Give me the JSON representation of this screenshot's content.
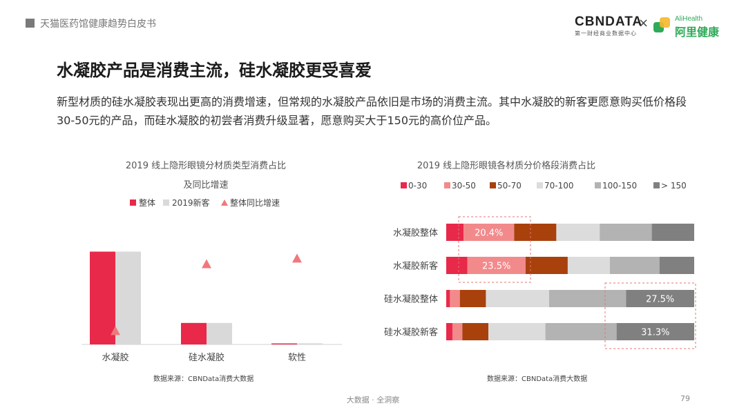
{
  "header": {
    "report_title": "天猫医药馆健康趋势白皮书",
    "logo_cbn": "CBNDATA",
    "logo_cbn_sub": "第一财经商业数据中心",
    "logo_x": "×",
    "logo_ali_en": "AliHealth",
    "logo_ali_cn": "阿里健康"
  },
  "page": {
    "title": "水凝胶产品是消费主流，硅水凝胶更受喜爱",
    "description": "新型材质的硅水凝胶表现出更高的消费增速，但常规的水凝胶产品依旧是市场的消费主流。其中水凝胶的新客更愿意购买低价格段30-50元的产品，而硅水凝胶的初尝者消费升级显著，愿意购买大于150元的高价位产品。",
    "footer_middle": "大数据 · 全洞察",
    "page_number": "79"
  },
  "chart_data": [
    {
      "type": "bar",
      "title": "2019 线上隐形眼镜分材质类型消费占比",
      "subtitle": "及同比增速",
      "categories": [
        "水凝胶",
        "硅水凝胶",
        "软性"
      ],
      "series": [
        {
          "name": "整体",
          "color": "#e8294a",
          "values": [
            82,
            19,
            0.6
          ]
        },
        {
          "name": "2019新客",
          "color": "#d9d9d9",
          "values": [
            82,
            19,
            1
          ]
        },
        {
          "name": "整体同比增速",
          "color": "#f0787d",
          "marker": "triangle",
          "values": [
            12,
            71,
            76
          ]
        }
      ],
      "ylim": [
        0,
        100
      ],
      "grid": false,
      "legend": "top",
      "source": "数据来源：CBNData消费大数据"
    },
    {
      "type": "bar",
      "stacked": "horizontal-100",
      "title": "2019 线上隐形眼镜各材质分价格段消费占比",
      "categories": [
        "水凝胶整体",
        "水凝胶新客",
        "硅水凝胶整体",
        "硅水凝胶新客"
      ],
      "series": [
        {
          "name": "0-30",
          "color": "#e8294a",
          "values": [
            7.0,
            8.5,
            1.5,
            2.5
          ]
        },
        {
          "name": "30-50",
          "color": "#f28a8c",
          "values": [
            20.4,
            23.5,
            4.0,
            4.0
          ]
        },
        {
          "name": "50-70",
          "color": "#a8410c",
          "values": [
            17.0,
            17.0,
            10.5,
            10.5
          ]
        },
        {
          "name": "70-100",
          "color": "#dcdcdc",
          "values": [
            17.5,
            17.0,
            25.5,
            23.0
          ]
        },
        {
          "name": "100-150",
          "color": "#b3b3b3",
          "values": [
            21.0,
            20.0,
            31.0,
            28.7
          ]
        },
        {
          "name": "> 150",
          "color": "#808080",
          "values": [
            17.1,
            14.0,
            27.5,
            31.3
          ]
        }
      ],
      "data_labels": [
        {
          "category": "水凝胶整体",
          "series": "30-50",
          "text": "20.4%"
        },
        {
          "category": "水凝胶新客",
          "series": "30-50",
          "text": "23.5%"
        },
        {
          "category": "硅水凝胶整体",
          "series": "> 150",
          "text": "27.5%"
        },
        {
          "category": "硅水凝胶新客",
          "series": "> 150",
          "text": "31.3%"
        }
      ],
      "xlim": [
        0,
        100
      ],
      "grid": false,
      "legend": "top",
      "source": "数据来源：CBNData消费大数据"
    }
  ]
}
